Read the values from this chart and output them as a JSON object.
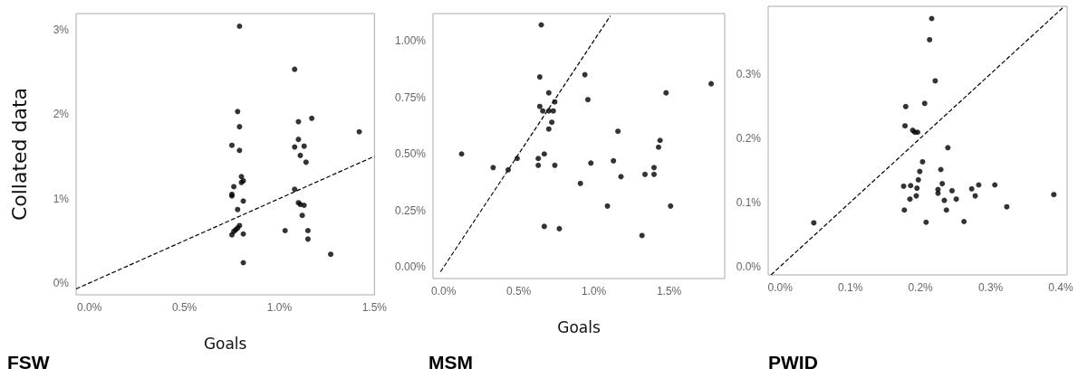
{
  "chart_data": [
    {
      "type": "scatter",
      "title": "FSW",
      "xlabel": "Goals",
      "ylabel": "Collated data",
      "xlim": [
        -0.07,
        1.5
      ],
      "ylim": [
        -0.14,
        3.19
      ],
      "xticks": [
        {
          "value": 0,
          "label": "0.0%"
        },
        {
          "value": 0.5,
          "label": "0.5%"
        },
        {
          "value": 1,
          "label": "1.0%"
        },
        {
          "value": 1.5,
          "label": "1.5%"
        }
      ],
      "yticks": [
        {
          "value": 0,
          "label": "0%"
        },
        {
          "value": 1,
          "label": "1%"
        },
        {
          "value": 2,
          "label": "2%"
        },
        {
          "value": 3,
          "label": "3%"
        }
      ],
      "grid": false,
      "marker": "circle",
      "series": [
        {
          "color": "#000000",
          "x": [
            0.79,
            1.08,
            0.78,
            1.1,
            1.17,
            0.79,
            1.42,
            0.75,
            0.79,
            1.1,
            1.08,
            1.13,
            1.11,
            1.14,
            0.8,
            0.81,
            0.8,
            0.76,
            0.75,
            0.75,
            0.81,
            1.08,
            1.1,
            1.11,
            1.13,
            0.78,
            1.12,
            0.79,
            0.78,
            0.77,
            0.76,
            0.75,
            0.81,
            1.03,
            1.15,
            1.15,
            1.27,
            0.81
          ],
          "values": [
            3.04,
            2.53,
            2.03,
            1.91,
            1.95,
            1.85,
            1.79,
            1.63,
            1.57,
            1.7,
            1.61,
            1.62,
            1.51,
            1.43,
            1.26,
            1.21,
            1.19,
            1.14,
            1.05,
            1.03,
            0.97,
            1.11,
            0.95,
            0.93,
            0.92,
            0.87,
            0.8,
            0.68,
            0.65,
            0.63,
            0.61,
            0.57,
            0.58,
            0.62,
            0.62,
            0.52,
            0.34,
            0.24
          ]
        },
        {
          "type": "line",
          "color": "#000000",
          "line_style": "dashed",
          "marker": "none",
          "x": [
            -0.07,
            1.5
          ],
          "values": [
            -0.07,
            1.5
          ]
        }
      ]
    },
    {
      "type": "scatter",
      "title": "MSM",
      "xlabel": "Goals",
      "xlim": [
        -0.07,
        1.87
      ],
      "ylim": [
        -0.05,
        1.12
      ],
      "xticks": [
        {
          "value": 0,
          "label": "0.0%"
        },
        {
          "value": 0.5,
          "label": "0.5%"
        },
        {
          "value": 1,
          "label": "1.0%"
        },
        {
          "value": 1.5,
          "label": "1.5%"
        }
      ],
      "yticks": [
        {
          "value": 0,
          "label": "0.00%"
        },
        {
          "value": 0.25,
          "label": "0.25%"
        },
        {
          "value": 0.5,
          "label": "0.50%"
        },
        {
          "value": 0.75,
          "label": "0.75%"
        },
        {
          "value": 1,
          "label": "1.00%"
        }
      ],
      "grid": false,
      "marker": "circle",
      "series": [
        {
          "color": "#000000",
          "x": [
            0.65,
            0.64,
            0.94,
            1.78,
            0.7,
            1.48,
            0.96,
            0.74,
            0.64,
            0.66,
            0.7,
            0.73,
            0.72,
            0.7,
            1.16,
            1.44,
            1.43,
            0.12,
            0.67,
            0.49,
            0.63,
            1.13,
            0.63,
            0.74,
            0.98,
            0.33,
            1.4,
            0.43,
            1.4,
            1.34,
            1.18,
            0.91,
            1.09,
            1.51,
            0.67,
            0.77,
            1.32
          ],
          "values": [
            1.07,
            0.84,
            0.85,
            0.81,
            0.77,
            0.77,
            0.74,
            0.73,
            0.71,
            0.69,
            0.69,
            0.69,
            0.64,
            0.61,
            0.6,
            0.56,
            0.53,
            0.5,
            0.5,
            0.48,
            0.48,
            0.47,
            0.45,
            0.45,
            0.46,
            0.44,
            0.44,
            0.43,
            0.41,
            0.41,
            0.4,
            0.37,
            0.27,
            0.27,
            0.18,
            0.17,
            0.14
          ]
        },
        {
          "type": "line",
          "color": "#000000",
          "line_style": "dashed",
          "marker": "none",
          "x": [
            -0.02,
            1.11
          ],
          "values": [
            -0.02,
            1.11
          ]
        }
      ]
    },
    {
      "type": "scatter",
      "title": "PWID",
      "xlim": [
        -0.017,
        0.409
      ],
      "ylim": [
        -0.013,
        0.405
      ],
      "xticks": [
        {
          "value": 0,
          "label": "0.0%"
        },
        {
          "value": 0.1,
          "label": "0.1%"
        },
        {
          "value": 0.2,
          "label": "0.2%"
        },
        {
          "value": 0.3,
          "label": "0.3%"
        },
        {
          "value": 0.4,
          "label": "0.4%"
        }
      ],
      "yticks": [
        {
          "value": 0,
          "label": "0.0%"
        },
        {
          "value": 0.1,
          "label": "0.1%"
        },
        {
          "value": 0.2,
          "label": "0.2%"
        },
        {
          "value": 0.3,
          "label": "0.3%"
        }
      ],
      "grid": false,
      "marker": "circle",
      "series": [
        {
          "color": "#000000",
          "x": [
            0.216,
            0.213,
            0.221,
            0.179,
            0.206,
            0.178,
            0.189,
            0.192,
            0.196,
            0.239,
            0.203,
            0.229,
            0.199,
            0.197,
            0.176,
            0.186,
            0.231,
            0.195,
            0.306,
            0.283,
            0.273,
            0.225,
            0.245,
            0.225,
            0.39,
            0.278,
            0.194,
            0.185,
            0.234,
            0.251,
            0.323,
            0.177,
            0.237,
            0.048,
            0.208,
            0.262
          ],
          "values": [
            0.386,
            0.353,
            0.289,
            0.249,
            0.254,
            0.219,
            0.212,
            0.209,
            0.209,
            0.185,
            0.163,
            0.151,
            0.148,
            0.135,
            0.125,
            0.126,
            0.129,
            0.122,
            0.127,
            0.127,
            0.121,
            0.12,
            0.118,
            0.114,
            0.112,
            0.11,
            0.11,
            0.105,
            0.103,
            0.105,
            0.093,
            0.088,
            0.088,
            0.068,
            0.069,
            0.07
          ]
        },
        {
          "type": "line",
          "color": "#000000",
          "line_style": "dashed",
          "marker": "none",
          "x": [
            -0.013,
            0.405
          ],
          "values": [
            -0.013,
            0.405
          ]
        }
      ]
    }
  ]
}
